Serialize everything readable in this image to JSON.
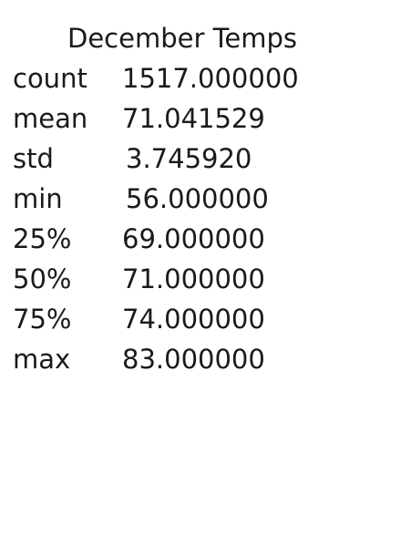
{
  "table": {
    "column_header": "December Temps",
    "rows": [
      {
        "label": "count",
        "value": "1517.000000"
      },
      {
        "label": "mean",
        "value": "71.041529"
      },
      {
        "label": "std",
        "value": "3.745920"
      },
      {
        "label": "min",
        "value": "56.000000"
      },
      {
        "label": "25%",
        "value": "69.000000"
      },
      {
        "label": "50%",
        "value": "71.000000"
      },
      {
        "label": "75%",
        "value": "74.000000"
      },
      {
        "label": "max",
        "value": "83.000000"
      }
    ]
  }
}
